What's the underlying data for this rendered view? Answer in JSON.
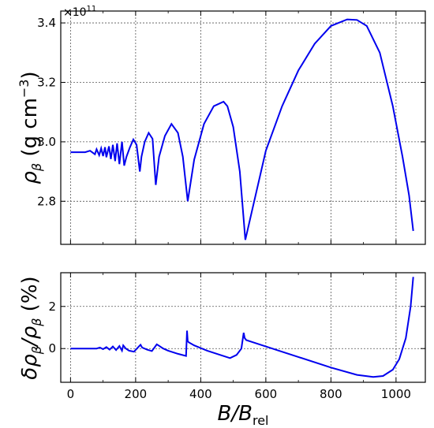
{
  "chart_data": [
    {
      "type": "line",
      "title": "",
      "xlabel": "",
      "ylabel_main": "ρ",
      "ylabel_sub": "β",
      "ylabel_unit": " (g cm",
      "ylabel_exp": "−3",
      "ylabel_close": ")",
      "y_offset_text_base": "×10",
      "y_offset_text_exp": "11",
      "xlim": [
        -30,
        1090
      ],
      "ylim": [
        2.655,
        3.44
      ],
      "xticks": [
        0,
        200,
        400,
        600,
        800,
        1000
      ],
      "xtick_labels": [
        "",
        "",
        "",
        "",
        "",
        ""
      ],
      "yticks": [
        2.8,
        3.0,
        3.2,
        3.4
      ],
      "ytick_labels": [
        "2.8",
        "3.0",
        "3.2",
        "3.4"
      ],
      "grid": true,
      "color": "#0000ee",
      "series": [
        {
          "x": [
            0,
            45,
            60,
            75,
            80,
            88,
            94,
            100,
            106,
            110,
            118,
            124,
            130,
            137,
            143,
            150,
            158,
            165,
            172,
            182,
            193,
            203,
            213,
            218,
            228,
            240,
            252,
            262,
            272,
            290,
            310,
            330,
            345,
            360,
            380,
            410,
            440,
            470,
            482,
            500,
            520,
            537,
            560,
            600,
            650,
            700,
            750,
            800,
            850,
            880,
            910,
            950,
            990,
            1020,
            1040,
            1053
          ],
          "y": [
            2.965,
            2.965,
            2.97,
            2.958,
            2.975,
            2.955,
            2.978,
            2.952,
            2.982,
            2.948,
            2.985,
            2.942,
            2.99,
            2.935,
            2.995,
            2.925,
            3.0,
            2.92,
            2.95,
            2.98,
            3.008,
            2.99,
            2.9,
            2.95,
            3.0,
            3.03,
            3.01,
            2.855,
            2.95,
            3.02,
            3.06,
            3.03,
            2.95,
            2.8,
            2.94,
            3.06,
            3.12,
            3.135,
            3.12,
            3.05,
            2.9,
            2.67,
            2.78,
            2.97,
            3.12,
            3.24,
            3.33,
            3.39,
            3.412,
            3.41,
            3.39,
            3.3,
            3.12,
            2.95,
            2.82,
            2.7
          ]
        }
      ]
    },
    {
      "type": "line",
      "title": "",
      "xlabel_main": "B",
      "xlabel_slash": "/",
      "xlabel_B": "B",
      "xlabel_sub": "rel",
      "ylabel_delta": "δρ",
      "ylabel_sub1": "β",
      "ylabel_mid": "/ρ",
      "ylabel_sub2": "β",
      "ylabel_unit": " (%)",
      "xlim": [
        -30,
        1090
      ],
      "ylim": [
        -1.6,
        3.6
      ],
      "xticks": [
        0,
        200,
        400,
        600,
        800,
        1000
      ],
      "xtick_labels": [
        "0",
        "200",
        "400",
        "600",
        "800",
        "1000"
      ],
      "yticks": [
        0,
        2
      ],
      "ytick_labels": [
        "0",
        "2"
      ],
      "grid": true,
      "color": "#0000ee",
      "series": [
        {
          "x": [
            0,
            80,
            90,
            100,
            110,
            120,
            130,
            140,
            150,
            158,
            162,
            170,
            180,
            195,
            210,
            215,
            220,
            235,
            250,
            265,
            270,
            285,
            300,
            330,
            355,
            358,
            360,
            363,
            380,
            420,
            460,
            490,
            510,
            525,
            532,
            535,
            540,
            560,
            600,
            700,
            800,
            880,
            930,
            960,
            990,
            1010,
            1030,
            1045,
            1053
          ],
          "y": [
            0.0,
            0.0,
            0.05,
            -0.03,
            0.07,
            -0.05,
            0.1,
            -0.07,
            0.12,
            -0.1,
            0.15,
            0.0,
            -0.1,
            -0.15,
            0.1,
            0.18,
            0.05,
            -0.05,
            -0.12,
            0.2,
            0.15,
            0.0,
            -0.1,
            -0.25,
            -0.35,
            0.85,
            0.35,
            0.3,
            0.15,
            -0.1,
            -0.3,
            -0.45,
            -0.3,
            0.0,
            0.75,
            0.5,
            0.4,
            0.3,
            0.1,
            -0.4,
            -0.9,
            -1.25,
            -1.35,
            -1.3,
            -1.0,
            -0.5,
            0.5,
            2.0,
            3.4
          ]
        }
      ]
    }
  ]
}
